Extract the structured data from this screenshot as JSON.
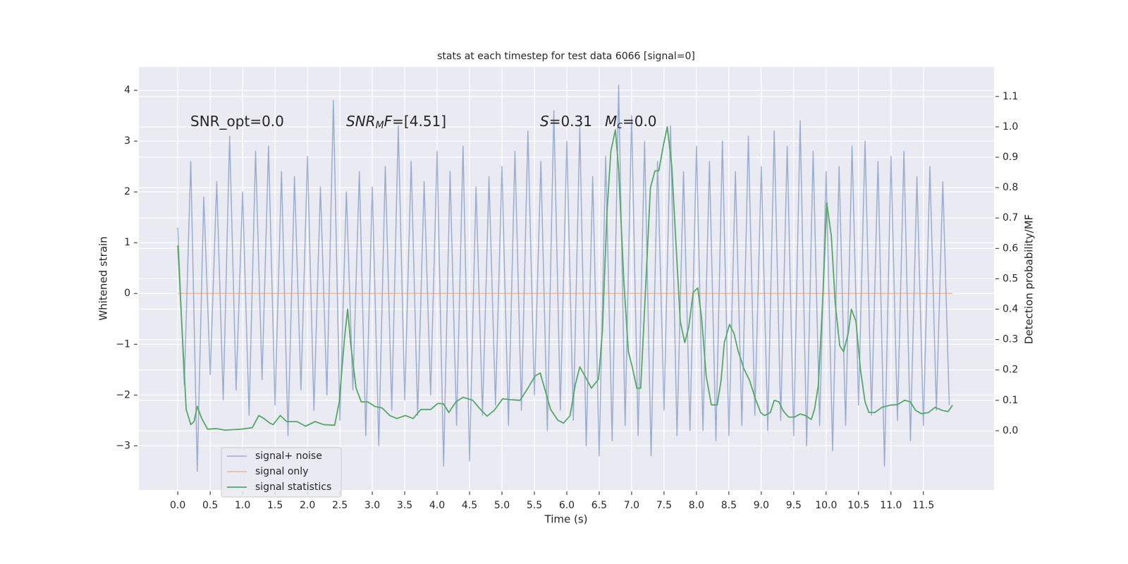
{
  "chart_data": {
    "type": "line",
    "title": "stats at each timestep for test data 6066 [signal=0]",
    "xlabel": "Time (s)",
    "ylabel": "Whitened strain",
    "y2label": "Detection probability/MF",
    "xlim": [
      -0.6,
      12.59
    ],
    "ylim": [
      -3.87,
      4.46
    ],
    "y2lim": [
      -0.195,
      1.197
    ],
    "xticks": [
      {
        "value": 0,
        "label": "0.0"
      },
      {
        "value": 0.5,
        "label": "0.5"
      },
      {
        "value": 1,
        "label": "1.0"
      },
      {
        "value": 1.5,
        "label": "1.5"
      },
      {
        "value": 2,
        "label": "2.0"
      },
      {
        "value": 2.5,
        "label": "2.5"
      },
      {
        "value": 3,
        "label": "3.0"
      },
      {
        "value": 3.5,
        "label": "3.5"
      },
      {
        "value": 4,
        "label": "4.0"
      },
      {
        "value": 4.5,
        "label": "4.5"
      },
      {
        "value": 5,
        "label": "5.0"
      },
      {
        "value": 5.5,
        "label": "5.5"
      },
      {
        "value": 6,
        "label": "6.0"
      },
      {
        "value": 6.5,
        "label": "6.5"
      },
      {
        "value": 7,
        "label": "7.0"
      },
      {
        "value": 7.5,
        "label": "7.5"
      },
      {
        "value": 8,
        "label": "8.0"
      },
      {
        "value": 8.5,
        "label": "8.5"
      },
      {
        "value": 9,
        "label": "9.0"
      },
      {
        "value": 9.5,
        "label": "9.5"
      },
      {
        "value": 10,
        "label": "10.0"
      },
      {
        "value": 10.5,
        "label": "10.5"
      },
      {
        "value": 11,
        "label": "11.0"
      },
      {
        "value": 11.5,
        "label": "11.5"
      }
    ],
    "yticks": [
      {
        "value": -3,
        "label": "−3"
      },
      {
        "value": -2,
        "label": "−2"
      },
      {
        "value": -1,
        "label": "−1"
      },
      0,
      1,
      2,
      3,
      4
    ],
    "y2ticks": [
      {
        "value": 0,
        "label": "0.0"
      },
      {
        "value": 0.1,
        "label": "0.1"
      },
      {
        "value": 0.2,
        "label": "0.2"
      },
      {
        "value": 0.3,
        "label": "0.3"
      },
      {
        "value": 0.4,
        "label": "0.4"
      },
      {
        "value": 0.5,
        "label": "0.5"
      },
      {
        "value": 0.6,
        "label": "0.6"
      },
      {
        "value": 0.7,
        "label": "0.7"
      },
      {
        "value": 0.8,
        "label": "0.8"
      },
      {
        "value": 0.9,
        "label": "0.9"
      },
      {
        "value": 1,
        "label": "1.0"
      },
      {
        "value": 1.1,
        "label": "1.1"
      }
    ],
    "grid": true,
    "legend": "lower left",
    "annotations": [
      {
        "parts": [
          {
            "text": "SNR_opt=0.0"
          }
        ]
      },
      {
        "parts": [
          {
            "text": "SNR",
            "italic": true
          },
          {
            "text": "M",
            "italic": true,
            "sub": true
          },
          {
            "text": "F",
            "italic": true
          },
          {
            "text": "=[4.51]"
          }
        ]
      },
      {
        "parts": [
          {
            "text": "S",
            "italic": true
          },
          {
            "text": "=0.31"
          }
        ]
      },
      {
        "parts": [
          {
            "text": "M",
            "italic": true
          },
          {
            "text": "c",
            "italic": true,
            "sub": true
          },
          {
            "text": "=0.0"
          }
        ]
      }
    ],
    "series": [
      {
        "name": "signal+ noise",
        "color": "#4c72b0",
        "x": [
          0,
          0.1,
          0.2,
          0.3,
          0.4,
          0.5,
          0.6,
          0.7,
          0.8,
          0.9,
          1,
          1.1,
          1.2,
          1.3,
          1.4,
          1.5,
          1.6,
          1.7,
          1.8,
          1.9,
          2,
          2.1,
          2.2,
          2.3,
          2.4,
          2.5,
          2.6,
          2.7,
          2.8,
          2.9,
          3,
          3.1,
          3.2,
          3.3,
          3.4,
          3.5,
          3.6,
          3.7,
          3.8,
          3.9,
          4,
          4.1,
          4.2,
          4.3,
          4.4,
          4.5,
          4.6,
          4.7,
          4.8,
          4.9,
          5,
          5.1,
          5.2,
          5.3,
          5.4,
          5.5,
          5.6,
          5.7,
          5.8,
          5.9,
          6,
          6.1,
          6.2,
          6.3,
          6.4,
          6.5,
          6.6,
          6.7,
          6.8,
          6.9,
          7,
          7.1,
          7.2,
          7.3,
          7.4,
          7.5,
          7.6,
          7.7,
          7.8,
          7.9,
          8,
          8.1,
          8.2,
          8.3,
          8.4,
          8.5,
          8.6,
          8.7,
          8.8,
          8.9,
          9,
          9.1,
          9.2,
          9.3,
          9.4,
          9.5,
          9.6,
          9.7,
          9.8,
          9.9,
          10,
          10.1,
          10.2,
          10.3,
          10.4,
          10.5,
          10.6,
          10.7,
          10.8,
          10.9,
          11,
          11.1,
          11.2,
          11.3,
          11.4,
          11.5,
          11.6,
          11.7,
          11.8,
          11.9
        ],
        "values": [
          1.3,
          -1.8,
          2.6,
          -3.5,
          1.9,
          -1.6,
          2.2,
          -2.1,
          3.1,
          -1.9,
          2.0,
          -2.4,
          2.8,
          -1.7,
          2.9,
          -2.2,
          2.4,
          -2.8,
          2.3,
          -1.9,
          2.7,
          -2.3,
          2.1,
          -2.0,
          3.8,
          -2.5,
          2.0,
          -1.9,
          2.4,
          -2.8,
          2.1,
          -3.0,
          2.5,
          -2.3,
          3.3,
          -2.1,
          2.6,
          -2.4,
          2.2,
          -2.0,
          2.8,
          -3.4,
          2.4,
          -2.6,
          2.9,
          -3.3,
          2.1,
          -2.4,
          2.3,
          -2.2,
          2.5,
          -2.6,
          2.8,
          -2.3,
          3.2,
          -2.0,
          2.6,
          -2.7,
          3.6,
          -2.3,
          3.0,
          -2.5,
          3.3,
          -3.0,
          2.3,
          -3.2,
          2.7,
          -2.9,
          4.1,
          -2.6,
          3.5,
          -2.8,
          3.0,
          -3.2,
          2.6,
          -2.3,
          3.3,
          -2.8,
          2.4,
          -2.7,
          2.9,
          -2.7,
          2.6,
          -2.9,
          3.0,
          -2.8,
          2.4,
          -2.6,
          3.1,
          -2.4,
          2.5,
          -2.7,
          3.2,
          -2.5,
          2.9,
          -2.8,
          3.4,
          -3.0,
          2.8,
          -2.6,
          2.4,
          -3.1,
          2.5,
          -2.6,
          2.9,
          -2.2,
          3.0,
          -2.4,
          2.6,
          -3.4,
          2.7,
          -2.5,
          2.8,
          -2.9,
          2.3,
          -2.6,
          2.5,
          -2.3,
          2.2,
          -2.2
        ]
      },
      {
        "name": "signal only",
        "color": "#dd8452",
        "x": [
          0,
          11.95
        ],
        "values": [
          0,
          0
        ]
      },
      {
        "name": "signal statistics",
        "color": "#55a868",
        "axis": "y2",
        "x": [
          0,
          0.1,
          0.13,
          0.2,
          0.25,
          0.3,
          0.37,
          0.46,
          0.59,
          0.73,
          0.97,
          1.15,
          1.25,
          1.33,
          1.42,
          1.47,
          1.58,
          1.68,
          1.84,
          1.97,
          2.12,
          2.25,
          2.42,
          2.49,
          2.57,
          2.62,
          2.67,
          2.75,
          2.83,
          2.93,
          3.04,
          3.15,
          3.27,
          3.38,
          3.51,
          3.63,
          3.75,
          3.9,
          4.01,
          4.1,
          4.18,
          4.29,
          4.4,
          4.55,
          4.66,
          4.77,
          4.88,
          5.01,
          5.14,
          5.28,
          5.4,
          5.51,
          5.59,
          5.67,
          5.75,
          5.86,
          5.95,
          6.05,
          6.13,
          6.2,
          6.28,
          6.38,
          6.49,
          6.55,
          6.62,
          6.68,
          6.75,
          6.8,
          6.88,
          6.95,
          7.01,
          7.08,
          7.14,
          7.22,
          7.29,
          7.36,
          7.42,
          7.49,
          7.55,
          7.62,
          7.68,
          7.75,
          7.82,
          7.88,
          7.95,
          8.02,
          8.08,
          8.15,
          8.23,
          8.32,
          8.38,
          8.43,
          8.51,
          8.58,
          8.64,
          8.73,
          8.82,
          8.9,
          8.99,
          9.05,
          9.14,
          9.2,
          9.27,
          9.34,
          9.42,
          9.51,
          9.6,
          9.68,
          9.77,
          9.82,
          9.88,
          9.95,
          10.01,
          10.08,
          10.14,
          10.21,
          10.27,
          10.34,
          10.39,
          10.46,
          10.53,
          10.6,
          10.66,
          10.75,
          10.86,
          10.99,
          11.1,
          11.21,
          11.3,
          11.38,
          11.47,
          11.58,
          11.68,
          11.79,
          11.88,
          11.95
        ],
        "values": [
          0.61,
          0.19,
          0.07,
          0.02,
          0.03,
          0.08,
          0.04,
          0.005,
          0.007,
          0.002,
          0.005,
          0.01,
          0.05,
          0.04,
          0.025,
          0.02,
          0.05,
          0.03,
          0.03,
          0.015,
          0.03,
          0.02,
          0.018,
          0.095,
          0.3,
          0.4,
          0.28,
          0.14,
          0.095,
          0.095,
          0.08,
          0.075,
          0.05,
          0.04,
          0.05,
          0.04,
          0.07,
          0.07,
          0.09,
          0.088,
          0.06,
          0.095,
          0.11,
          0.1,
          0.072,
          0.048,
          0.067,
          0.105,
          0.102,
          0.1,
          0.14,
          0.18,
          0.19,
          0.13,
          0.07,
          0.035,
          0.025,
          0.05,
          0.15,
          0.21,
          0.18,
          0.14,
          0.17,
          0.33,
          0.72,
          0.92,
          0.99,
          0.86,
          0.49,
          0.26,
          0.21,
          0.14,
          0.14,
          0.49,
          0.8,
          0.855,
          0.855,
          0.94,
          1.0,
          0.87,
          0.63,
          0.36,
          0.29,
          0.34,
          0.455,
          0.47,
          0.37,
          0.18,
          0.085,
          0.085,
          0.165,
          0.29,
          0.35,
          0.32,
          0.265,
          0.205,
          0.165,
          0.11,
          0.06,
          0.05,
          0.06,
          0.1,
          0.095,
          0.065,
          0.045,
          0.045,
          0.055,
          0.05,
          0.037,
          0.07,
          0.15,
          0.44,
          0.75,
          0.64,
          0.42,
          0.28,
          0.26,
          0.32,
          0.4,
          0.36,
          0.2,
          0.095,
          0.06,
          0.06,
          0.077,
          0.084,
          0.086,
          0.1,
          0.095,
          0.067,
          0.056,
          0.06,
          0.077,
          0.067,
          0.063,
          0.084
        ]
      }
    ]
  }
}
